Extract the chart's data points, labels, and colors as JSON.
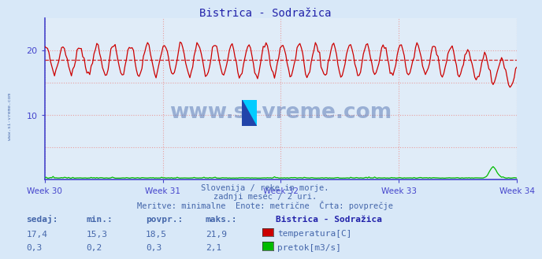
{
  "title_display": "Bistrica - Sodražica",
  "bg_color": "#d8e8f8",
  "plot_bg_color": "#e0ecf8",
  "grid_color": "#e8a0a0",
  "grid_style": ":",
  "spine_color": "#4444cc",
  "xlabel_weeks": [
    "Week 30",
    "Week 31",
    "Week 32",
    "Week 33",
    "Week 34"
  ],
  "yticks": [
    10,
    20
  ],
  "ylim": [
    0,
    25
  ],
  "avg_temp": 18.5,
  "temp_color": "#cc0000",
  "flow_color": "#00bb00",
  "avg_line_color": "#cc0000",
  "watermark_color": "#4466aa",
  "subtitle1": "Slovenija / reke in morje.",
  "subtitle2": "zadnji mesec / 2 uri.",
  "subtitle3": "Meritve: minimalne  Enote: metrične  Črta: povprečje",
  "legend_title": "Bistrica - Sodražica",
  "label_temp": "temperatura[C]",
  "label_flow": "pretok[m3/s]",
  "table_headers": [
    "sedaj:",
    "min.:",
    "povpr.:",
    "maks.:"
  ],
  "table_temp": [
    "17,4",
    "15,3",
    "18,5",
    "21,9"
  ],
  "table_flow": [
    "0,3",
    "0,2",
    "0,3",
    "2,1"
  ],
  "title_color": "#2222aa",
  "table_color": "#4466aa",
  "n_points": 336,
  "n_days": 28
}
